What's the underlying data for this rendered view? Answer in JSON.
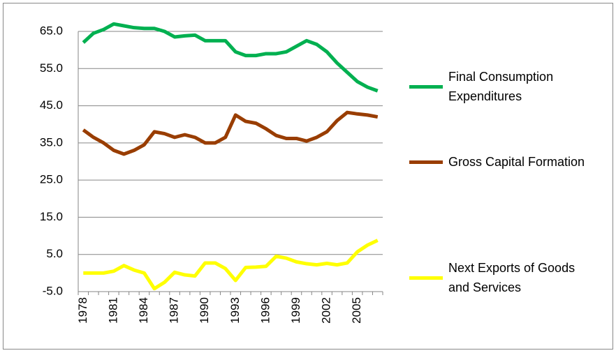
{
  "chart_data": {
    "type": "line",
    "categories": [
      "1978",
      null,
      null,
      "1981",
      null,
      null,
      "1984",
      null,
      null,
      "1987",
      null,
      null,
      "1990",
      null,
      null,
      "1993",
      null,
      null,
      "1996",
      null,
      null,
      "1999",
      null,
      null,
      "2002",
      null,
      null,
      "2005",
      null,
      null
    ],
    "series": [
      {
        "name": "Final Consumption Expenditures",
        "color": "#00b050",
        "values": [
          62.0,
          64.5,
          65.5,
          67.0,
          66.5,
          66.0,
          65.8,
          65.8,
          65.0,
          63.5,
          63.8,
          64.0,
          62.5,
          62.5,
          62.5,
          59.5,
          58.5,
          58.5,
          59.0,
          59.0,
          59.5,
          61.0,
          62.5,
          61.5,
          59.5,
          56.5,
          54.0,
          51.5,
          50.0,
          49.0
        ]
      },
      {
        "name": "Gross Capital Formation",
        "color": "#993d00",
        "values": [
          38.5,
          36.5,
          35.0,
          33.0,
          32.0,
          33.0,
          34.5,
          38.0,
          37.5,
          36.5,
          37.2,
          36.5,
          35.0,
          35.0,
          36.5,
          42.5,
          40.8,
          40.3,
          38.8,
          37.0,
          36.2,
          36.2,
          35.5,
          36.5,
          38.0,
          41.0,
          43.2,
          42.8,
          42.5,
          42.0
        ]
      },
      {
        "name": "Next Exports of Goods and Services",
        "color": "#ffff00",
        "values": [
          0.0,
          0.0,
          0.0,
          0.5,
          2.0,
          0.8,
          0.0,
          -4.2,
          -2.5,
          0.2,
          -0.5,
          -0.8,
          2.7,
          2.7,
          1.2,
          -2.0,
          1.5,
          1.6,
          1.8,
          4.5,
          4.0,
          3.0,
          2.5,
          2.2,
          2.6,
          2.2,
          2.7,
          5.7,
          7.5,
          8.8
        ]
      }
    ],
    "ylim": [
      -5,
      65
    ],
    "yticks": [
      {
        "value": -5,
        "label": "-5.0"
      },
      {
        "value": 5,
        "label": "5.0"
      },
      {
        "value": 15,
        "label": "15.0"
      },
      {
        "value": 25,
        "label": "25.0"
      },
      {
        "value": 35,
        "label": "35.0"
      },
      {
        "value": 45,
        "label": "45.0"
      },
      {
        "value": 55,
        "label": "55.0"
      },
      {
        "value": 65,
        "label": "65.0"
      }
    ],
    "grid": true,
    "legend": "right"
  }
}
